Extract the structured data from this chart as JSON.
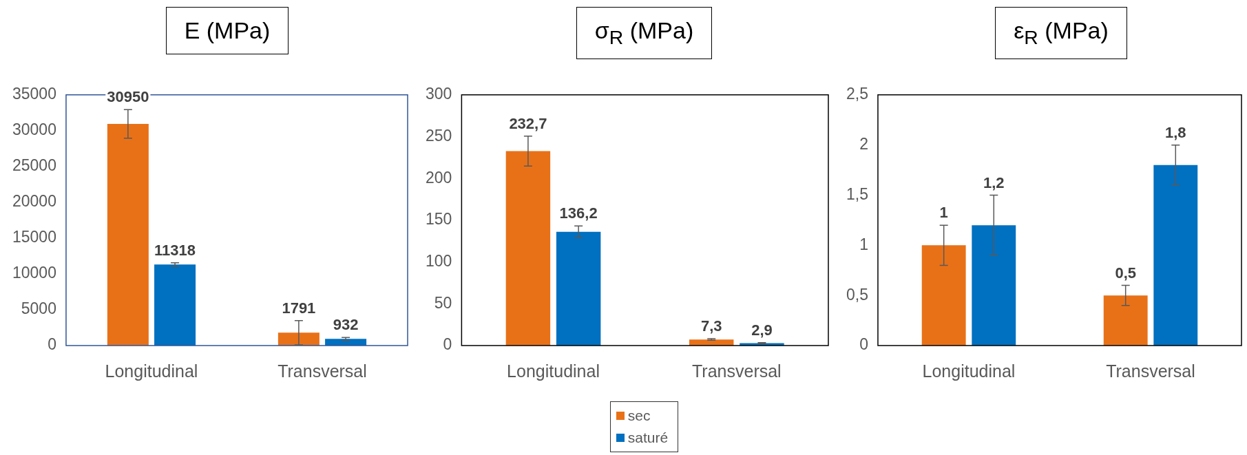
{
  "chart_data": [
    {
      "type": "bar",
      "title": "E (MPa)",
      "categories": [
        "Longitudinal",
        "Transversal"
      ],
      "series": [
        {
          "color": "#e87118",
          "values": [
            30950,
            1791
          ],
          "errors": [
            2000,
            1700
          ],
          "value_labels": [
            "30950",
            "1791"
          ]
        },
        {
          "color": "#0070c0",
          "values": [
            11318,
            932
          ],
          "errors": [
            250,
            200
          ],
          "value_labels": [
            "11318",
            "932"
          ]
        }
      ],
      "ylim": [
        0,
        35000
      ],
      "yticks": [
        0,
        5000,
        10000,
        15000,
        20000,
        25000,
        30000,
        35000
      ]
    },
    {
      "type": "bar",
      "title": "σ$_{R}$ (MPa)",
      "categories": [
        "Longitudinal",
        "Transversal"
      ],
      "series": [
        {
          "name": "sec",
          "color": "#e87118",
          "values": [
            232.7,
            7.3
          ],
          "errors": [
            18,
            1
          ],
          "value_labels": [
            "232,7",
            "7,3"
          ]
        },
        {
          "name": "saturé",
          "color": "#0070c0",
          "values": [
            136.2,
            2.9
          ],
          "errors": [
            7,
            0.5
          ],
          "value_labels": [
            "136,2",
            "2,9"
          ]
        }
      ],
      "ylim": [
        0,
        300
      ],
      "yticks": [
        0,
        50,
        100,
        150,
        200,
        250,
        300
      ],
      "legend": "bottom"
    },
    {
      "type": "bar",
      "title": "ε$_{R}$ (MPa)",
      "categories": [
        "Longitudinal",
        "Transversal"
      ],
      "series": [
        {
          "color": "#e87118",
          "values": [
            1,
            0.5
          ],
          "errors": [
            0.2,
            0.1
          ],
          "value_labels": [
            "1",
            "0,5"
          ]
        },
        {
          "color": "#0070c0",
          "values": [
            1.2,
            1.8
          ],
          "errors": [
            0.3,
            0.2
          ],
          "value_labels": [
            "1,2",
            "1,8"
          ]
        }
      ],
      "ylim": [
        0,
        2.5
      ],
      "yticks": [
        0,
        {
          "value": 0.5,
          "label": "0,5"
        },
        1,
        {
          "value": 1.5,
          "label": "1,5"
        },
        2,
        {
          "value": 2.5,
          "label": "2,5"
        }
      ]
    }
  ]
}
